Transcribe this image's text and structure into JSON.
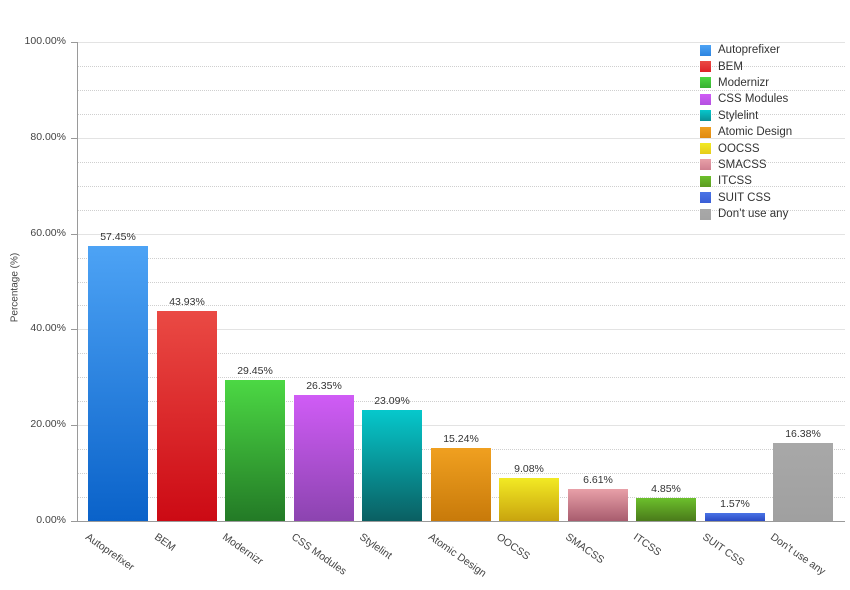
{
  "chart_data": {
    "type": "bar",
    "title": "",
    "xlabel": "",
    "ylabel": "Percentage (%)",
    "ylim": [
      0,
      100
    ],
    "yticks": [
      "0.00%",
      "20.00%",
      "40.00%",
      "60.00%",
      "80.00%",
      "100.00%"
    ],
    "grid": {
      "major_step": 20,
      "minor_step": 5
    },
    "legend_position": "top-right",
    "categories": [
      "Autoprefixer",
      "BEM",
      "Modernizr",
      "CSS Modules",
      "Stylelint",
      "Atomic Design",
      "OOCSS",
      "SMACSS",
      "ITCSS",
      "SUIT CSS",
      "Don’t use any"
    ],
    "values": [
      57.45,
      43.93,
      29.45,
      26.35,
      23.09,
      15.24,
      9.08,
      6.61,
      4.85,
      1.57,
      16.38
    ],
    "value_labels": [
      "57.45%",
      "43.93%",
      "29.45%",
      "26.35%",
      "23.09%",
      "15.24%",
      "9.08%",
      "6.61%",
      "4.85%",
      "1.57%",
      "16.38%"
    ],
    "colors": [
      {
        "top": "#4da3f5",
        "bottom": "#0a62c9"
      },
      {
        "top": "#ea4a44",
        "bottom": "#cc0a14"
      },
      {
        "top": "#4cd844",
        "bottom": "#237a26"
      },
      {
        "top": "#d05cf6",
        "bottom": "#8c44b0"
      },
      {
        "top": "#06c8cc",
        "bottom": "#0a5f62"
      },
      {
        "top": "#f0a020",
        "bottom": "#c87a0a"
      },
      {
        "top": "#f2ea24",
        "bottom": "#c9a40e"
      },
      {
        "top": "#e8a0a8",
        "bottom": "#a85c6e"
      },
      {
        "top": "#6cc02c",
        "bottom": "#4a7a1a"
      },
      {
        "top": "#4a74e6",
        "bottom": "#2a4ac4"
      },
      {
        "top": "#a8a8a8",
        "bottom": "#a0a0a0"
      }
    ]
  },
  "legend": {
    "items": [
      {
        "label": "Autoprefixer",
        "color": "#2c84e0"
      },
      {
        "label": "BEM",
        "color": "#de2228"
      },
      {
        "label": "Modernizr",
        "color": "#38b032"
      },
      {
        "label": "CSS Modules",
        "color": "#b450e0"
      },
      {
        "label": "Stylelint",
        "color": "#0a9096"
      },
      {
        "label": "Atomic Design",
        "color": "#e08a10"
      },
      {
        "label": "OOCSS",
        "color": "#e6cc1a"
      },
      {
        "label": "SMACSS",
        "color": "#d08090"
      },
      {
        "label": "ITCSS",
        "color": "#5c9a22"
      },
      {
        "label": "SUIT CSS",
        "color": "#3a5ed6"
      },
      {
        "label": "Don’t use any",
        "color": "#a4a4a4"
      }
    ]
  }
}
